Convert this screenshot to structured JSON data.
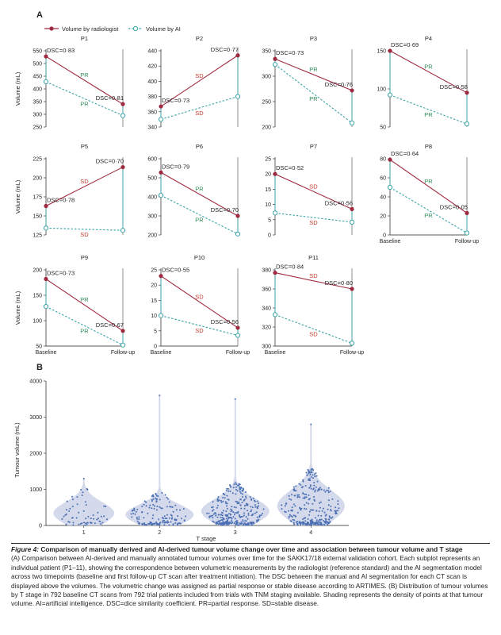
{
  "panel_a": {
    "label": "A",
    "legend": {
      "radiologist": "Volume by radiologist",
      "ai": "Volume by AI"
    },
    "ylabel": "Volume (mL)",
    "xtick_baseline": "Baseline",
    "xtick_followup": "Follow-up"
  },
  "panel_b": {
    "label": "B",
    "ylabel": "Tumour volume (mL)",
    "xlabel": "T stage"
  },
  "caption": {
    "label": "Figure 4:",
    "title": " Comparison of manually derived and AI-derived tumour volume change over time and association between tumour volume and T stage",
    "body": "(A) Comparison between AI-derived and manually annotated tumour volumes over time for the SAKK17/18 external validation cohort. Each subplot represents an individual patient (P1–11), showing the correspondence between volumetric measurements by the radiologist (reference standard) and the AI segmentation model across two timepoints (baseline and first follow-up CT scan after treatment initiation). The DSC between the manual and AI segmentation for each CT scan is displayed above the volumes. The volumetric change was assigned as partial response or stable disease according to ARTIMES. (B) Distribution of tumour volumes by T stage in 792 baseline CT scans from 792 trial patients included from trials with TNM staging available. Shading represents the density of points at that tumour volume. AI=artificial intelligence. DSC=dice similarity coefficient. PR=partial response. SD=stable disease."
  },
  "colors": {
    "radiologist": "#9e2a3f",
    "ai": "#3aa3a8",
    "pr_label": "#2e8b57",
    "sd_label": "#c0392b",
    "violin": "#cfd6ea",
    "points": "#4a6fb3"
  },
  "chart_data": [
    {
      "type": "line",
      "title": "P1",
      "categories": [
        "Baseline",
        "Follow-up"
      ],
      "ylim": [
        250,
        550
      ],
      "yticks": [
        250,
        300,
        350,
        400,
        450,
        500,
        550
      ],
      "series": [
        {
          "name": "Volume by radiologist",
          "values": [
            528,
            340
          ]
        },
        {
          "name": "Volume by AI",
          "values": [
            428,
            295
          ]
        }
      ],
      "annotations": {
        "dsc_baseline": "DSC=0·83",
        "dsc_followup": "DSC=0·81",
        "response_radiologist": "PR",
        "response_ai": "PR"
      }
    },
    {
      "type": "line",
      "title": "P2",
      "categories": [
        "Baseline",
        "Follow-up"
      ],
      "ylim": [
        340,
        440
      ],
      "yticks": [
        340,
        360,
        380,
        400,
        420,
        440
      ],
      "series": [
        {
          "name": "Volume by radiologist",
          "values": [
            367,
            434
          ]
        },
        {
          "name": "Volume by AI",
          "values": [
            350,
            380
          ]
        }
      ],
      "annotations": {
        "dsc_baseline": "DSC=0·73",
        "dsc_followup": "DSC=0·77",
        "response_radiologist": "SD",
        "response_ai": "SD"
      }
    },
    {
      "type": "line",
      "title": "P3",
      "categories": [
        "Baseline",
        "Follow-up"
      ],
      "ylim": [
        200,
        350
      ],
      "yticks": [
        200,
        250,
        300,
        350
      ],
      "series": [
        {
          "name": "Volume by radiologist",
          "values": [
            334,
            272
          ]
        },
        {
          "name": "Volume by AI",
          "values": [
            323,
            208
          ]
        }
      ],
      "annotations": {
        "dsc_baseline": "DSC=0·73",
        "dsc_followup": "DSC=0·76",
        "response_radiologist": "PR",
        "response_ai": "PR"
      }
    },
    {
      "type": "line",
      "title": "P4",
      "categories": [
        "Baseline",
        "Follow-up"
      ],
      "ylim": [
        50,
        150
      ],
      "yticks": [
        50,
        100,
        150
      ],
      "series": [
        {
          "name": "Volume by radiologist",
          "values": [
            150,
            95
          ]
        },
        {
          "name": "Volume by AI",
          "values": [
            92,
            54
          ]
        }
      ],
      "annotations": {
        "dsc_baseline": "DSC=0·69",
        "dsc_followup": "DSC=0·58",
        "response_radiologist": "PR",
        "response_ai": "PR"
      }
    },
    {
      "type": "line",
      "title": "P5",
      "categories": [
        "Baseline",
        "Follow-up"
      ],
      "ylim": [
        125,
        225
      ],
      "yticks": [
        125,
        150,
        175,
        200,
        225
      ],
      "series": [
        {
          "name": "Volume by radiologist",
          "values": [
            163,
            214
          ]
        },
        {
          "name": "Volume by AI",
          "values": [
            134,
            131
          ]
        }
      ],
      "annotations": {
        "dsc_baseline": "DSC=0·78",
        "dsc_followup": "DSC=0·70",
        "response_radiologist": "SD",
        "response_ai": "SD"
      }
    },
    {
      "type": "line",
      "title": "P6",
      "categories": [
        "Baseline",
        "Follow-up"
      ],
      "ylim": [
        200,
        600
      ],
      "yticks": [
        200,
        300,
        400,
        500,
        600
      ],
      "series": [
        {
          "name": "Volume by radiologist",
          "values": [
            528,
            300
          ]
        },
        {
          "name": "Volume by AI",
          "values": [
            408,
            205
          ]
        }
      ],
      "annotations": {
        "dsc_baseline": "DSC=0·79",
        "dsc_followup": "DSC=0·70",
        "response_radiologist": "PR",
        "response_ai": "PR"
      }
    },
    {
      "type": "line",
      "title": "P7",
      "categories": [
        "Baseline",
        "Follow-up"
      ],
      "ylim": [
        0,
        25
      ],
      "yticks": [
        0,
        5,
        10,
        15,
        20,
        25
      ],
      "series": [
        {
          "name": "Volume by radiologist",
          "values": [
            20,
            8.5
          ]
        },
        {
          "name": "Volume by AI",
          "values": [
            7.2,
            4.2
          ]
        }
      ],
      "annotations": {
        "dsc_baseline": "DSC=0·52",
        "dsc_followup": "DSC=0·56",
        "response_radiologist": "SD",
        "response_ai": "SD"
      }
    },
    {
      "type": "line",
      "title": "P8",
      "categories": [
        "Baseline",
        "Follow-up"
      ],
      "ylim": [
        0,
        80
      ],
      "yticks": [
        0,
        20,
        40,
        60,
        80
      ],
      "series": [
        {
          "name": "Volume by radiologist",
          "values": [
            79,
            23
          ]
        },
        {
          "name": "Volume by AI",
          "values": [
            50,
            2
          ]
        }
      ],
      "annotations": {
        "dsc_baseline": "DSC=0·64",
        "dsc_followup": "DSC=0·05",
        "response_radiologist": "PR",
        "response_ai": "PR"
      }
    },
    {
      "type": "line",
      "title": "P9",
      "categories": [
        "Baseline",
        "Follow-up"
      ],
      "ylim": [
        50,
        200
      ],
      "yticks": [
        50,
        100,
        150,
        200
      ],
      "series": [
        {
          "name": "Volume by radiologist",
          "values": [
            182,
            80
          ]
        },
        {
          "name": "Volume by AI",
          "values": [
            128,
            52
          ]
        }
      ],
      "annotations": {
        "dsc_baseline": "DSC=0·73",
        "dsc_followup": "DSC=0·67",
        "response_radiologist": "PR",
        "response_ai": "PR"
      }
    },
    {
      "type": "line",
      "title": "P10",
      "categories": [
        "Baseline",
        "Follow-up"
      ],
      "ylim": [
        0,
        25
      ],
      "yticks": [
        0,
        5,
        10,
        15,
        20,
        25
      ],
      "series": [
        {
          "name": "Volume by radiologist",
          "values": [
            23,
            6
          ]
        },
        {
          "name": "Volume by AI",
          "values": [
            10,
            3.5
          ]
        }
      ],
      "annotations": {
        "dsc_baseline": "DSC=0·55",
        "dsc_followup": "DSC=0·56",
        "response_radiologist": "SD",
        "response_ai": "SD"
      }
    },
    {
      "type": "line",
      "title": "P11",
      "categories": [
        "Baseline",
        "Follow-up"
      ],
      "ylim": [
        300,
        380
      ],
      "yticks": [
        300,
        320,
        340,
        360,
        380
      ],
      "series": [
        {
          "name": "Volume by radiologist",
          "values": [
            377,
            360
          ]
        },
        {
          "name": "Volume by AI",
          "values": [
            333,
            303
          ]
        }
      ],
      "annotations": {
        "dsc_baseline": "DSC=0·84",
        "dsc_followup": "DSC=0·80",
        "response_radiologist": "SD",
        "response_ai": "SD"
      }
    },
    {
      "type": "violin",
      "xlabel": "T stage",
      "ylabel": "Tumour volume (mL)",
      "categories": [
        "1",
        "2",
        "3",
        "4"
      ],
      "ylim": [
        0,
        4000
      ],
      "yticks": [
        0,
        1000,
        2000,
        3000,
        4000
      ],
      "n_scans": 792,
      "series": [
        {
          "category": "1",
          "median": 350,
          "max": 1300
        },
        {
          "category": "2",
          "median": 300,
          "max": 3600
        },
        {
          "category": "3",
          "median": 400,
          "max": 3500
        },
        {
          "category": "4",
          "median": 550,
          "max": 2800
        }
      ]
    }
  ]
}
